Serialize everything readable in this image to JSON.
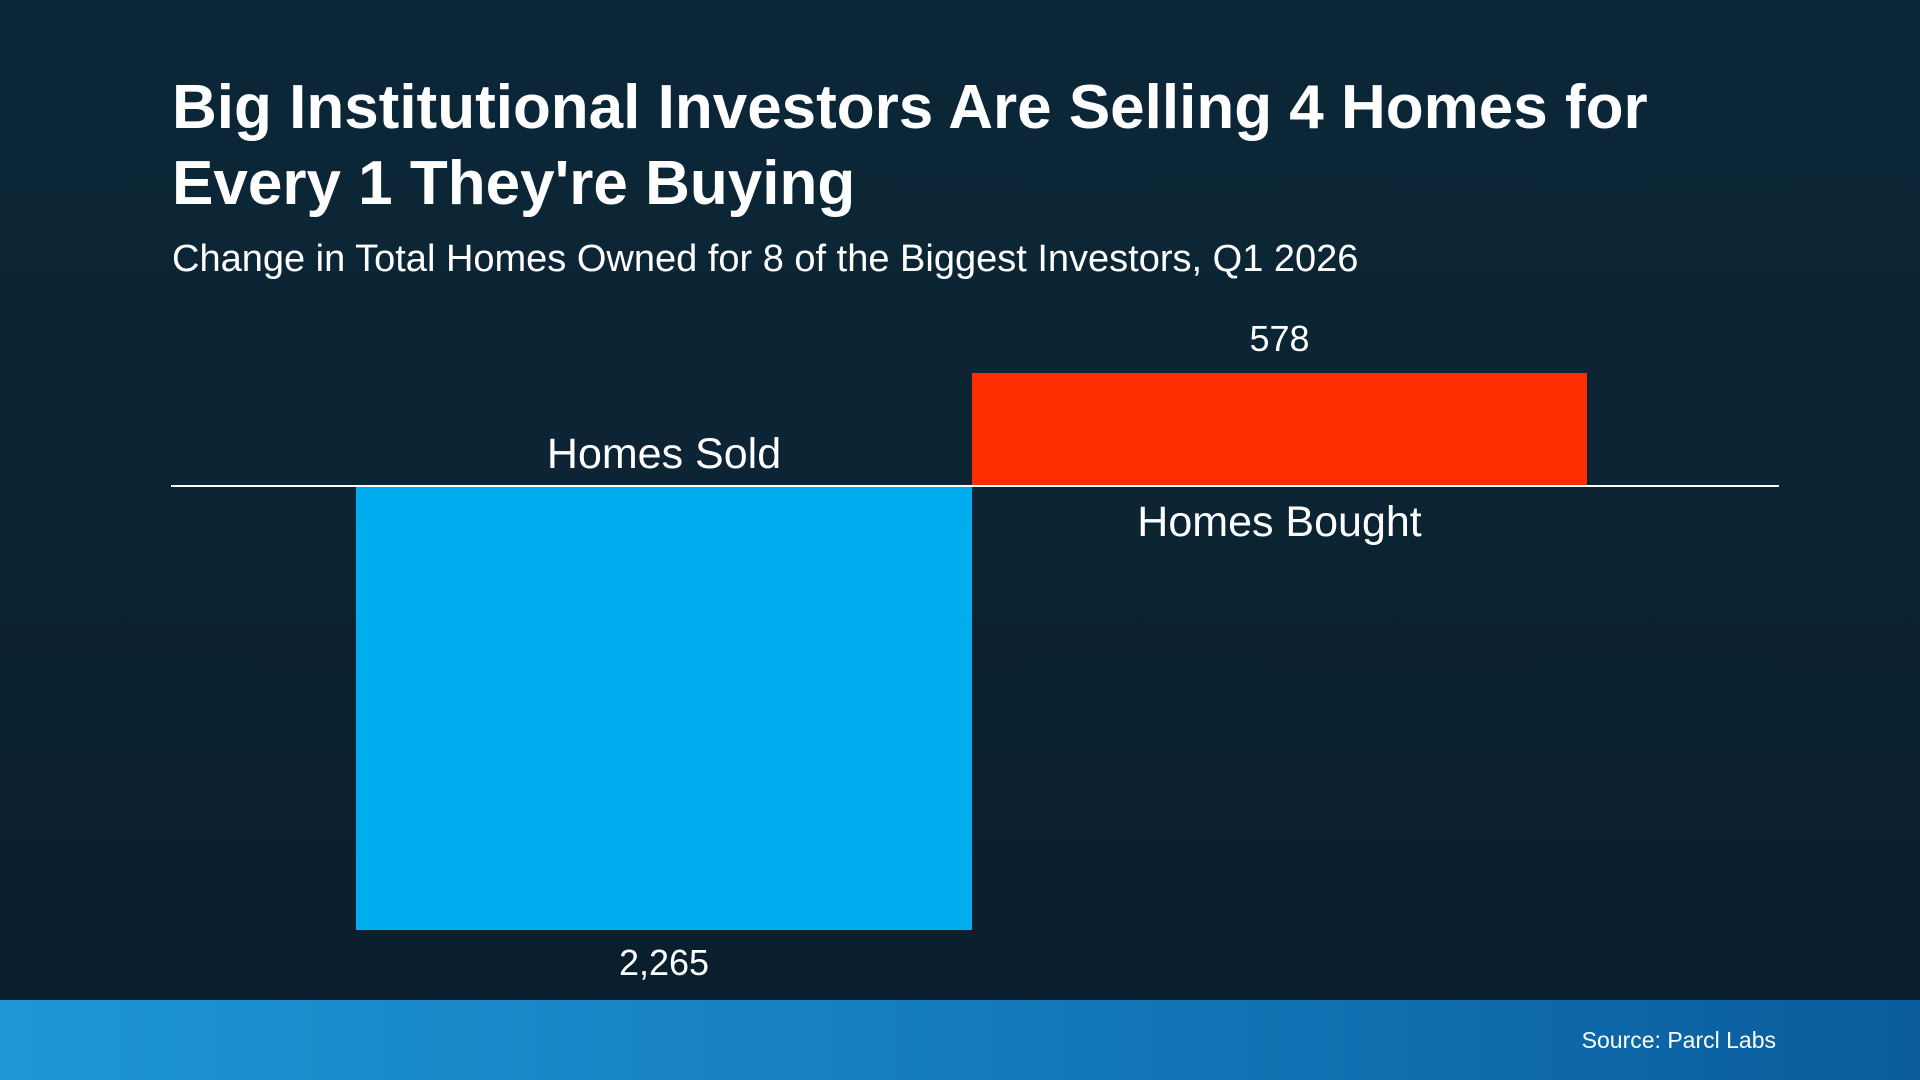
{
  "header": {
    "title": "Big Institutional Investors Are Selling 4 Homes for Every 1 They're Buying",
    "subtitle": "Change in Total Homes Owned for 8 of the Biggest Investors, Q1 2026"
  },
  "chart_data": {
    "type": "bar",
    "orientation": "vertical-diverging",
    "title": "Big Institutional Investors Are Selling 4 Homes for Every 1 They're Buying",
    "subtitle": "Change in Total Homes Owned for 8 of the Biggest Investors, Q1 2026",
    "categories": [
      "Homes Sold",
      "Homes Bought"
    ],
    "values": [
      -2265,
      578
    ],
    "value_labels": [
      "2,265",
      "578"
    ],
    "series_colors": [
      "#00ADEF",
      "#FF2E00"
    ],
    "baseline": 0,
    "ylim": [
      -2265,
      578
    ],
    "grid": false,
    "legend": false,
    "axis_lines": [
      "zero-baseline"
    ]
  },
  "footer": {
    "source": "Source: Parcl Labs"
  },
  "theme": {
    "background_top": "#0b2737",
    "background_bottom": "#0a1e2d",
    "text_color": "#ffffff",
    "baseline_color": "#ffffff",
    "footer_gradient_left": "#1f96d4",
    "footer_gradient_right": "#0a5c9c"
  }
}
